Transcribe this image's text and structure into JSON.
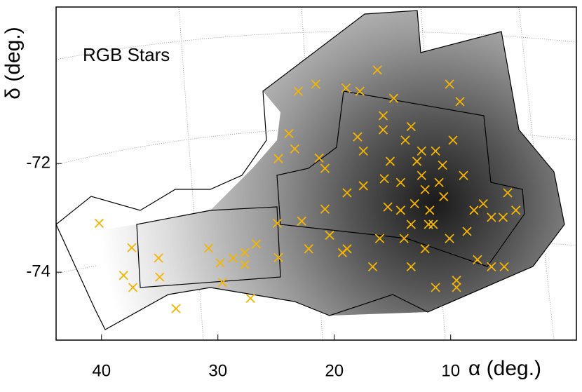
{
  "chart_data": {
    "type": "scatter",
    "annotation": "RGB Stars",
    "x_label": "α (deg.)",
    "y_label": "δ (deg.)",
    "xlim": [
      43.9,
      -0.8
    ],
    "ylim": [
      -75.25,
      -69.12
    ],
    "xticks": [
      40,
      30,
      20,
      10
    ],
    "yticks": [
      -72,
      -74
    ],
    "x": [
      40.2,
      37.4,
      38.1,
      37.3,
      35.1,
      35.0,
      33.6,
      30.8,
      29.8,
      29.6,
      28.7,
      27.7,
      27.7,
      27.2,
      26.7,
      24.8,
      24.8,
      23.9,
      23.4,
      23.1,
      21.6,
      21.3,
      20.8,
      22.8,
      20.8,
      19.0,
      18.9,
      17.8,
      18.0,
      17.5,
      17.5,
      16.3,
      15.8,
      15.8,
      15.7,
      15.4,
      14.9,
      13.9,
      13.4,
      12.9,
      12.5,
      12.2,
      11.8,
      11.5,
      11.0,
      10.6,
      10.1,
      9.8,
      9.2,
      8.9,
      8.0,
      7.2,
      6.5,
      5.5,
      4.4,
      5.1,
      12.2,
      11.3,
      9.5,
      7.7,
      9.5,
      14.0,
      13.4,
      16.1,
      14.3,
      10.7,
      11.3,
      12.5,
      13.1,
      14.3,
      13.4,
      11.9,
      10.1,
      8.6,
      6.5,
      5.4,
      15.2,
      16.7,
      18.9,
      20.4,
      19.3,
      22.2,
      24.9
    ],
    "series": [
      {
        "color": "#f5b400",
        "values": [
          -73.1,
          -73.55,
          -74.06,
          -74.28,
          -73.74,
          -74.09,
          -74.67,
          -73.56,
          -73.83,
          -74.19,
          -73.74,
          -73.64,
          -73.86,
          -74.48,
          -73.48,
          -73.73,
          -71.91,
          -71.45,
          -71.73,
          -70.67,
          -70.54,
          -71.9,
          -72.09,
          -73.06,
          -72.84,
          -70.61,
          -72.54,
          -70.67,
          -71.51,
          -71.77,
          -72.41,
          -70.28,
          -71.12,
          -71.38,
          -72.28,
          -72.8,
          -70.8,
          -71.57,
          -71.32,
          -71.96,
          -72.22,
          -72.48,
          -72.86,
          -73.12,
          -72.35,
          -72.61,
          -70.54,
          -71.57,
          -70.86,
          -72.22,
          -72.86,
          -72.74,
          -72.99,
          -72.99,
          -72.86,
          -72.54,
          -73.57,
          -74.28,
          -74.15,
          -73.77,
          -74.28,
          -73.38,
          -73.9,
          -73.38,
          -72.86,
          -72.03,
          -71.77,
          -71.77,
          -72.74,
          -72.35,
          -73.12,
          -73.12,
          -73.38,
          -73.25,
          -73.9,
          -73.9,
          -71.96,
          -73.9,
          -73.57,
          -73.32,
          -73.64,
          -73.57,
          -73.1
        ]
      }
    ]
  }
}
